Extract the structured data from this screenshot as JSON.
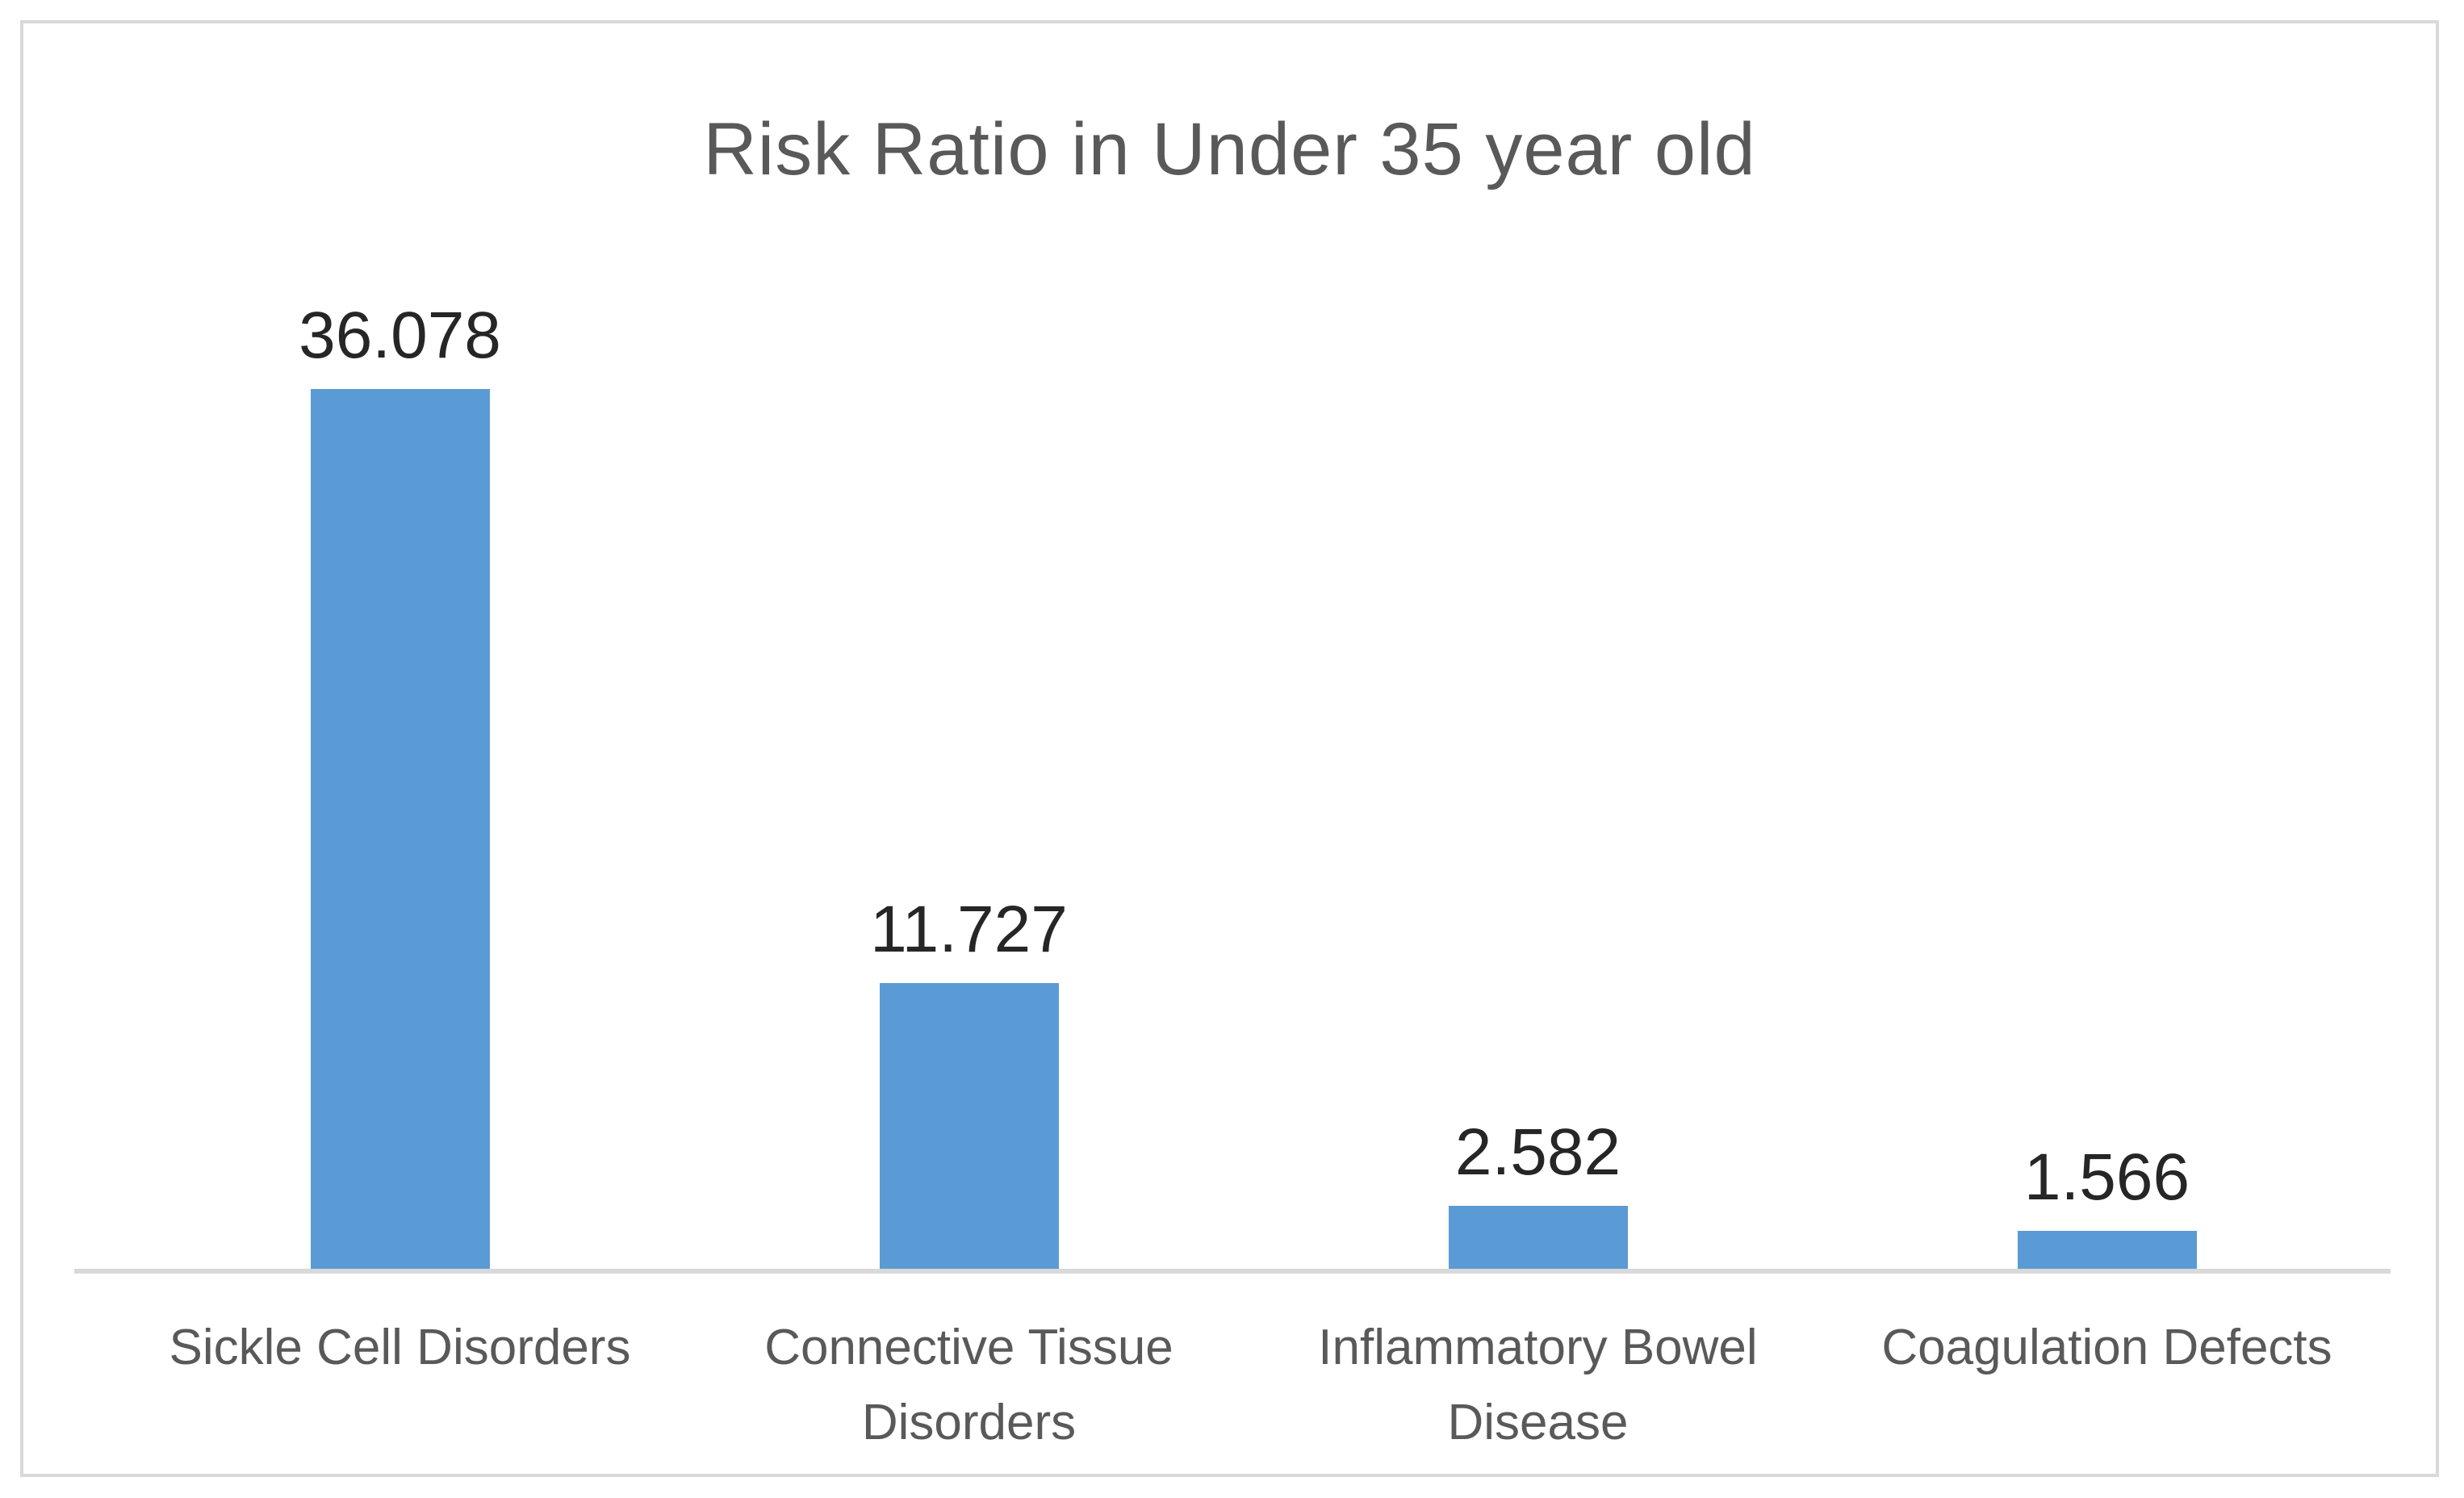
{
  "chart_data": {
    "type": "bar",
    "title": "Risk Ratio in Under 35 year old",
    "categories": [
      "Sickle Cell Disorders",
      "Connective Tissue Disorders",
      "Inflammatory Bowel Disease",
      "Coagulation Defects"
    ],
    "values": [
      36.078,
      11.727,
      2.582,
      1.566
    ],
    "data_labels": [
      "36.078",
      "11.727",
      "2.582",
      "1.566"
    ],
    "xlabel": "",
    "ylabel": "",
    "ylim": [
      0,
      40
    ],
    "grid": false,
    "legend": false,
    "bar_color": "#5B9BD5",
    "axis_line_color": "#D9D9D9",
    "frame_border_color": "#D9D9D9",
    "title_color": "#595959",
    "value_label_color": "#262626",
    "category_label_color": "#595959"
  }
}
